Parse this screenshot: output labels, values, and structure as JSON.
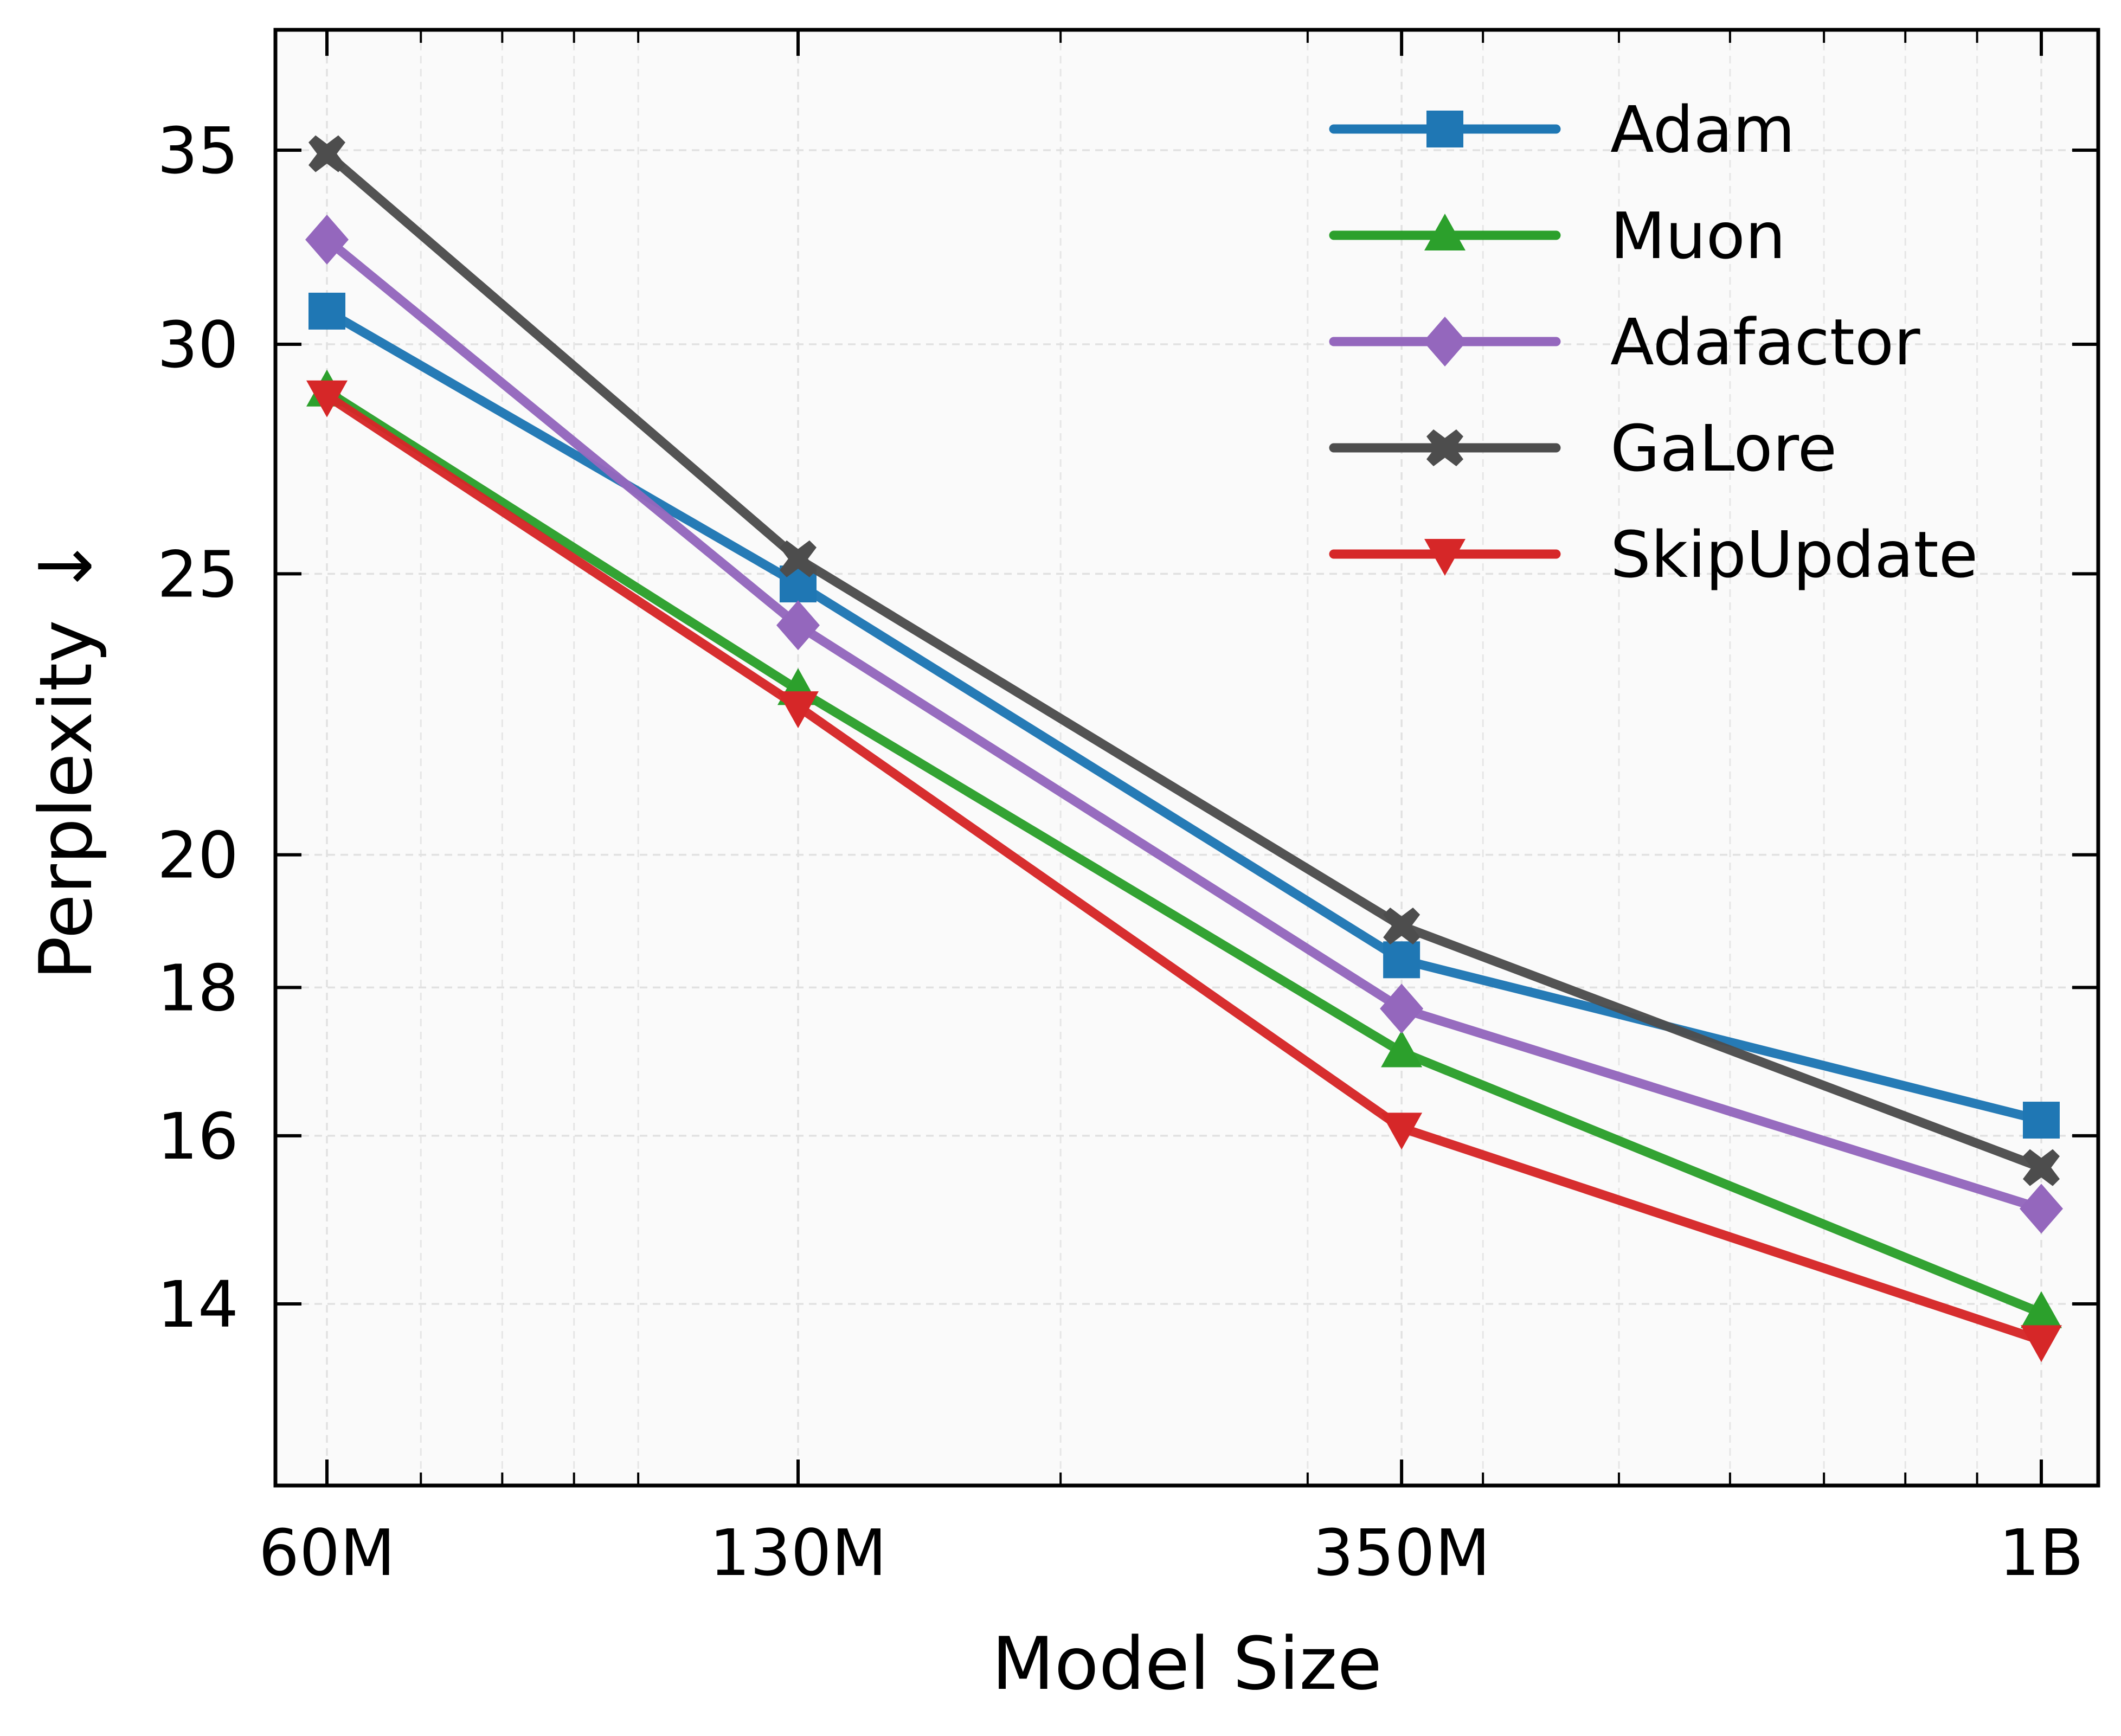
{
  "chart_data": {
    "type": "line",
    "xlabel": "Model Size",
    "ylabel": "Perplexity ↓",
    "categories": [
      "60M",
      "130M",
      "350M",
      "1B"
    ],
    "x_values_millions": [
      60,
      130,
      350,
      1000
    ],
    "x_scale": "log",
    "y_scale": "log",
    "ylim": [
      12.5,
      38
    ],
    "y_ticks": [
      14,
      16,
      18,
      20,
      25,
      30,
      35
    ],
    "grid": true,
    "legend_position": "top-right",
    "series": [
      {
        "name": "Adam",
        "color": "#1f77b4",
        "marker": "square",
        "values": [
          30.8,
          24.8,
          18.4,
          16.2
        ]
      },
      {
        "name": "Muon",
        "color": "#2ca02c",
        "marker": "triangle-up",
        "values": [
          28.9,
          22.8,
          17.1,
          13.9
        ]
      },
      {
        "name": "Adafactor",
        "color": "#9467bd",
        "marker": "diamond",
        "values": [
          32.6,
          24.0,
          17.7,
          15.1
        ]
      },
      {
        "name": "GaLore",
        "color": "#4d4d4d",
        "marker": "x-filled",
        "values": [
          34.9,
          25.3,
          18.9,
          15.6
        ]
      },
      {
        "name": "SkipUpdate",
        "color": "#d62728",
        "marker": "triangle-down",
        "values": [
          28.8,
          22.5,
          16.1,
          13.6
        ]
      }
    ]
  }
}
